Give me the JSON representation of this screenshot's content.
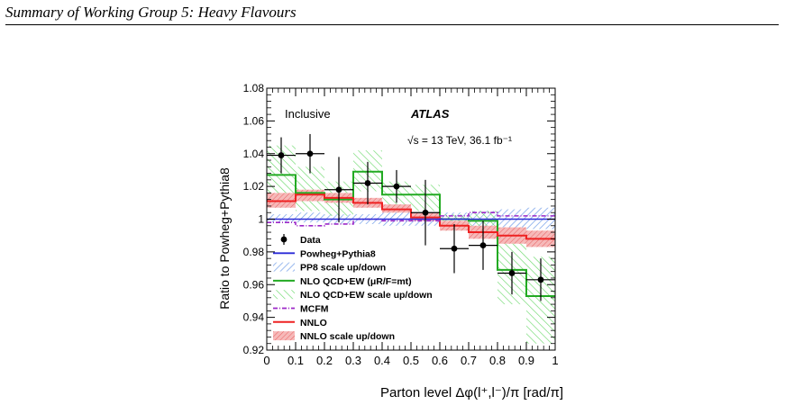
{
  "page": {
    "header": "Summary of Working Group 5: Heavy Flavours"
  },
  "chart_data": {
    "type": "histogram",
    "xlabel": "Parton level Δφ(l⁺,l⁻)/π [rad/π]",
    "ylabel": "Ratio to Powheg+Pythia8",
    "xlim": [
      0,
      1
    ],
    "ylim": [
      0.92,
      1.08
    ],
    "x_ticks": [
      "0",
      "0.1",
      "0.2",
      "0.3",
      "0.4",
      "0.5",
      "0.6",
      "0.7",
      "0.8",
      "0.9",
      "1"
    ],
    "y_ticks": [
      "0.92",
      "0.94",
      "0.96",
      "0.98",
      "1",
      "1.02",
      "1.04",
      "1.06",
      "1.08"
    ],
    "grid": false,
    "annotations": {
      "inclusive": "Inclusive",
      "atlas": "ATLAS",
      "energy": "√s = 13 TeV, 36.1 fb⁻¹"
    },
    "bin_edges": [
      0,
      0.1,
      0.2,
      0.3,
      0.4,
      0.5,
      0.6,
      0.7,
      0.8,
      0.9,
      1.0
    ],
    "data": {
      "name": "Data",
      "x": [
        0.05,
        0.15,
        0.25,
        0.35,
        0.45,
        0.55,
        0.65,
        0.75,
        0.85,
        0.95
      ],
      "y": [
        1.039,
        1.04,
        1.018,
        1.022,
        1.02,
        1.004,
        0.982,
        0.984,
        0.967,
        0.963
      ],
      "yerr": [
        0.011,
        0.012,
        0.02,
        0.013,
        0.01,
        0.02,
        0.015,
        0.015,
        0.013,
        0.013
      ]
    },
    "series": [
      {
        "name": "Powheg+Pythia8",
        "values": [
          1.0,
          1.0,
          1.0,
          1.0,
          1.0,
          1.0,
          1.0,
          1.0,
          1.0,
          1.0
        ],
        "color": "#2a2ad8"
      },
      {
        "name": "PP8 scale up/down",
        "band_low": [
          0.998,
          0.998,
          0.997,
          0.997,
          0.996,
          0.996,
          0.996,
          0.995,
          0.995,
          0.994
        ],
        "band_high": [
          1.003,
          1.004,
          1.003,
          1.003,
          1.004,
          1.004,
          1.004,
          1.005,
          1.006,
          1.007
        ],
        "color": "#5a8de8"
      },
      {
        "name": "NLO QCD+EW (μR/F=mt)",
        "values": [
          1.027,
          1.016,
          1.012,
          1.029,
          1.015,
          1.015,
          1.0,
          0.999,
          0.969,
          0.953
        ],
        "color": "#22aa22"
      },
      {
        "name": "NLO QCD+EW scale up/down",
        "band_low": [
          1.013,
          1.005,
          1.002,
          1.017,
          1.008,
          1.005,
          0.993,
          0.988,
          0.948,
          0.924
        ],
        "band_high": [
          1.045,
          1.032,
          1.023,
          1.042,
          1.023,
          1.021,
          1.003,
          1.005,
          0.989,
          0.977
        ],
        "color": "#66dd66"
      },
      {
        "name": "MCFM",
        "values": [
          0.998,
          0.996,
          0.997,
          1.0,
          0.999,
          0.999,
          1.002,
          1.004,
          1.002,
          1.002
        ],
        "color": "#9c28c8"
      },
      {
        "name": "NNLO",
        "values": [
          1.011,
          1.015,
          1.013,
          1.01,
          1.006,
          1.001,
          0.996,
          0.992,
          0.99,
          0.988
        ],
        "color": "#ee2222"
      },
      {
        "name": "NNLO scale up/down",
        "band_low": [
          1.007,
          1.011,
          1.01,
          1.007,
          1.004,
          0.999,
          0.993,
          0.988,
          0.985,
          0.983
        ],
        "band_high": [
          1.016,
          1.018,
          1.016,
          1.013,
          1.009,
          1.004,
          0.999,
          0.996,
          0.995,
          0.993
        ],
        "color": "#ee8888"
      }
    ],
    "legend": {
      "placement": "bottom-left",
      "entries": [
        "Data",
        "Powheg+Pythia8",
        "PP8 scale up/down",
        "NLO QCD+EW (μR/F=mt)",
        "NLO QCD+EW scale up/down",
        "MCFM",
        "NNLO",
        "NNLO scale up/down"
      ]
    }
  }
}
